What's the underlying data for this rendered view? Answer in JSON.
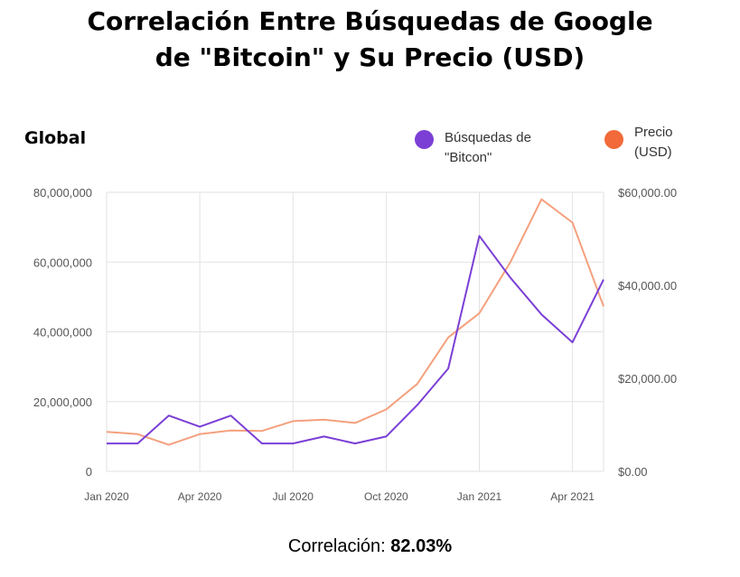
{
  "title": {
    "line1": "Correlación Entre Búsquedas de Google",
    "line2": "de \"Bitcoin\" y Su Precio (USD)"
  },
  "region_label": "Global",
  "legend": [
    {
      "label": "Búsquedas de\n\"Bitcon\"",
      "color": "#7b3fd6"
    },
    {
      "label": "Precio\n(USD)",
      "color": "#f26a3a"
    }
  ],
  "correlation": {
    "label": "Correlación:",
    "value": "82.03%"
  },
  "chart_data": {
    "type": "line",
    "x_tick_labels": [
      "Jan 2020",
      "Apr 2020",
      "Jul 2020",
      "Oct 2020",
      "Jan 2021",
      "Apr 2021"
    ],
    "y_left": {
      "ticks": [
        "0",
        "20,000,000",
        "40,000,000",
        "60,000,000",
        "80,000,000"
      ],
      "lim": [
        0,
        80000000
      ]
    },
    "y_right": {
      "ticks": [
        "$0.00",
        "$20,000.00",
        "$40,000.00",
        "$60,000.00"
      ],
      "lim": [
        0,
        60000
      ]
    },
    "grid": true,
    "legend_position": "top-right",
    "series": [
      {
        "name": "Búsquedas de \"Bitcon\"",
        "axis": "left",
        "color": "#7b3fd6",
        "x": [
          "2020-01",
          "2020-02",
          "2020-03",
          "2020-04",
          "2020-05",
          "2020-06",
          "2020-07",
          "2020-08",
          "2020-09",
          "2020-10",
          "2020-11",
          "2020-12",
          "2021-01",
          "2021-02",
          "2021-03",
          "2021-04",
          "2021-05"
        ],
        "values": [
          8000000,
          8000000,
          16000000,
          12800000,
          16000000,
          8000000,
          8000000,
          10000000,
          8000000,
          10000000,
          19000000,
          29500000,
          67500000,
          55500000,
          45000000,
          37000000,
          55000000
        ]
      },
      {
        "name": "Precio (USD)",
        "axis": "right",
        "color": "#f4a07e",
        "x": [
          "2020-01",
          "2020-02",
          "2020-03",
          "2020-04",
          "2020-05",
          "2020-06",
          "2020-07",
          "2020-08",
          "2020-09",
          "2020-10",
          "2020-11",
          "2020-12",
          "2021-01",
          "2021-02",
          "2021-03",
          "2021-04",
          "2021-05"
        ],
        "values": [
          8500,
          8000,
          5700,
          8000,
          8800,
          8700,
          10800,
          11100,
          10400,
          13300,
          18800,
          28800,
          34000,
          45000,
          58500,
          53500,
          35500
        ]
      }
    ]
  }
}
